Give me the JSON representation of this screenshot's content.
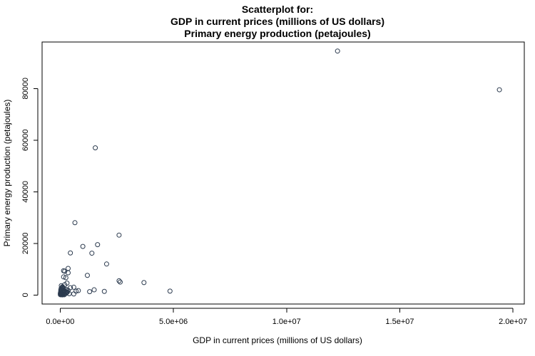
{
  "chart_data": {
    "type": "scatter",
    "title": [
      "Scatterplot for:",
      "GDP in current prices (millions of US dollars)",
      "Primary energy production (petajoules)"
    ],
    "xlabel": "GDP in current prices (millions of US dollars)",
    "ylabel": "Primary energy production (petajoules)",
    "xlim": [
      -800000,
      20500000
    ],
    "ylim": [
      -3500,
      98000
    ],
    "xticks": [
      {
        "value": 0,
        "label": "0.0e+00"
      },
      {
        "value": 5000000,
        "label": "5.0e+06"
      },
      {
        "value": 10000000,
        "label": "1.0e+07"
      },
      {
        "value": 15000000,
        "label": "1.5e+07"
      },
      {
        "value": 20000000,
        "label": "2.0e+07"
      }
    ],
    "yticks": [
      {
        "value": 0,
        "label": "0"
      },
      {
        "value": 20000,
        "label": "20000"
      },
      {
        "value": 40000,
        "label": "40000"
      },
      {
        "value": 60000,
        "label": "60000"
      },
      {
        "value": 80000,
        "label": "80000"
      }
    ],
    "grid": false,
    "legend": "none",
    "point_color": "#2b3a4e",
    "points": [
      [
        12250000,
        94500
      ],
      [
        19400000,
        79500
      ],
      [
        1550000,
        57000
      ],
      [
        650000,
        28000
      ],
      [
        2600000,
        23200
      ],
      [
        1000000,
        18800
      ],
      [
        1650000,
        19500
      ],
      [
        450000,
        16300
      ],
      [
        1400000,
        16200
      ],
      [
        2050000,
        12000
      ],
      [
        350000,
        10300
      ],
      [
        150000,
        9400
      ],
      [
        200000,
        9200
      ],
      [
        350000,
        8600
      ],
      [
        1200000,
        7600
      ],
      [
        150000,
        7000
      ],
      [
        250000,
        6700
      ],
      [
        2600000,
        5500
      ],
      [
        2650000,
        5000
      ],
      [
        3700000,
        4800
      ],
      [
        300000,
        4600
      ],
      [
        200000,
        4000
      ],
      [
        50000,
        3600
      ],
      [
        100000,
        3200
      ],
      [
        600000,
        3000
      ],
      [
        450000,
        2800
      ],
      [
        150000,
        2500
      ],
      [
        1500000,
        2000
      ],
      [
        4850000,
        1500
      ],
      [
        1950000,
        1400
      ],
      [
        1300000,
        1300
      ],
      [
        800000,
        1700
      ],
      [
        700000,
        1500
      ],
      [
        350000,
        1800
      ],
      [
        300000,
        1000
      ],
      [
        250000,
        2200
      ],
      [
        400000,
        500
      ],
      [
        600000,
        400
      ],
      [
        50000,
        2000
      ],
      [
        100000,
        1200
      ],
      [
        20000,
        800
      ],
      [
        30000,
        300
      ],
      [
        80000,
        600
      ],
      [
        120000,
        200
      ],
      [
        10000,
        100
      ],
      [
        60000,
        1500
      ],
      [
        150000,
        900
      ],
      [
        200000,
        400
      ],
      [
        40000,
        2500
      ],
      [
        90000,
        3000
      ],
      [
        170000,
        1700
      ],
      [
        250000,
        600
      ],
      [
        15000,
        1000
      ],
      [
        70000,
        100
      ],
      [
        130000,
        2000
      ],
      [
        220000,
        1300
      ],
      [
        5000,
        500
      ],
      [
        25000,
        1800
      ],
      [
        110000,
        2600
      ],
      [
        180000,
        100
      ],
      [
        45000,
        700
      ],
      [
        85000,
        2200
      ],
      [
        160000,
        1100
      ],
      [
        270000,
        900
      ],
      [
        35000,
        1400
      ],
      [
        95000,
        50
      ],
      [
        140000,
        1600
      ],
      [
        320000,
        1200
      ],
      [
        55000,
        200
      ],
      [
        75000,
        2800
      ]
    ]
  }
}
